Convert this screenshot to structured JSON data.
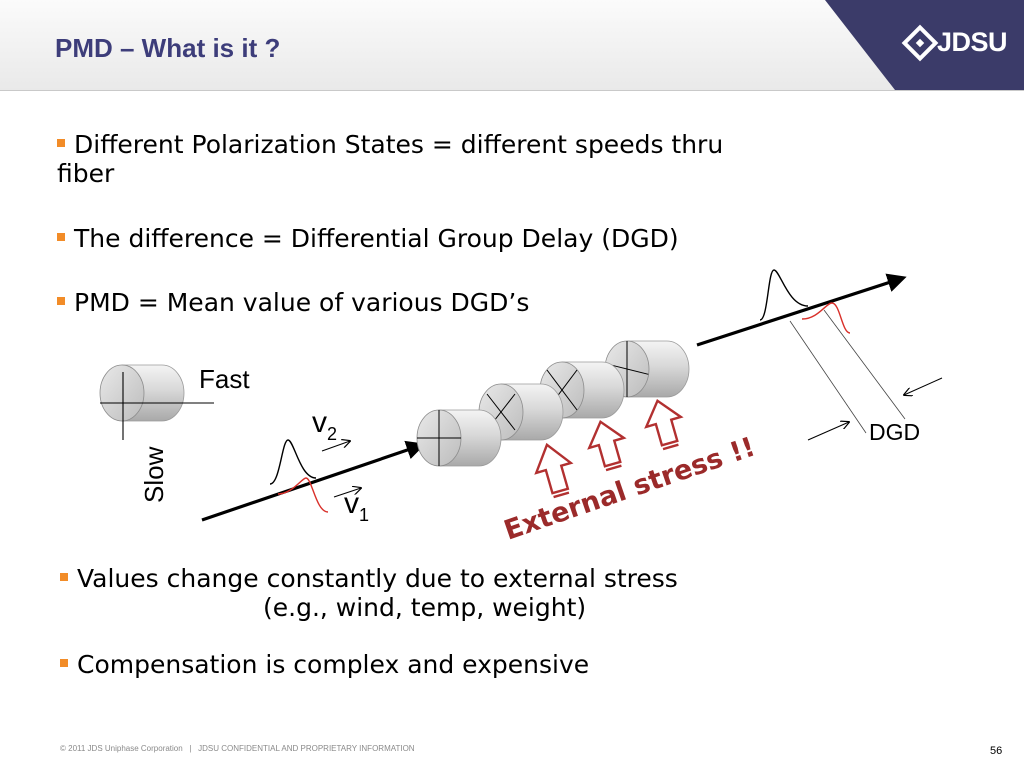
{
  "title": "PMD – What is it ?",
  "logo": {
    "text": "JDSU",
    "brand_color": "#3b3b69"
  },
  "bullets": [
    {
      "line1": "Different Polarization States = different speeds thru",
      "line2": "fiber"
    },
    {
      "text": "The difference = Differential Group Delay (DGD)"
    },
    {
      "text": "PMD = Mean value of various DGD’s"
    },
    {
      "line1": "Values change constantly due to external stress",
      "line2": "(e.g., wind, temp, weight)"
    },
    {
      "text": "Compensation is complex and expensive"
    }
  ],
  "diagram": {
    "fast_label": "Fast",
    "slow_label": "Slow",
    "v2_base": "v",
    "v2_sub": "2",
    "v1_base": "v",
    "v1_sub": "1",
    "dgd_label": "DGD",
    "stress_label": "External stress !!",
    "colors": {
      "stress": "#9b2a2a",
      "pulse_red": "#d9302a",
      "bullet": "#f28c28",
      "title": "#3d3d7a"
    }
  },
  "footer": {
    "copyright": "© 2011 JDS Uniphase Corporation   |   JDSU CONFIDENTIAL AND PROPRIETARY INFORMATION",
    "page": "56"
  }
}
